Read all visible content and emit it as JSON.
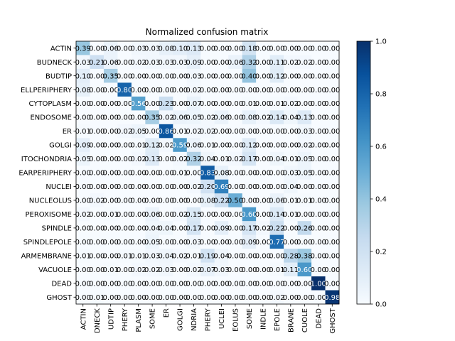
{
  "chart_data": {
    "type": "heatmap",
    "title": "Normalized confusion matrix",
    "labels": [
      "ACTIN",
      "BUDNECK",
      "BUDTIP",
      "CELLPERIPHERY",
      "CYTOPLASM",
      "ENDOSOME",
      "ER",
      "GOLGI",
      "MITOCHONDRIA",
      "NUCLEARPERIPHERY",
      "NUCLEI",
      "NUCLEOLUS",
      "PEROXISOME",
      "SPINDLE",
      "SPINDLEPOLE",
      "VACUOLARMEMBRANE",
      "VACUOLE",
      "DEAD",
      "GHOST"
    ],
    "xticklabels_visible": [
      "ACTIN",
      "DNECK",
      "UDTIP",
      "PHERY",
      "PLASM",
      "SOME",
      "ER",
      "GOLGI",
      "NDRIA",
      "PHERY",
      "UCLEI",
      "EOLUS",
      "SOME",
      "INDLE",
      "EPOLE",
      "BRANE",
      "CUOLE",
      "DEAD",
      "GHOST"
    ],
    "yticklabels_visible": [
      "ACTIN",
      "BUDNECK",
      "BUDTIP",
      "ELLPERIPHERY",
      "CYTOPLASM",
      "ENDOSOME",
      "ER",
      "GOLGI",
      "ITOCHONDRIA",
      "EARPERIPHERY",
      "NUCLEI",
      "NUCLEOLUS",
      "PEROXISOME",
      "SPINDLE",
      "SPINDLEPOLE",
      "ARMEMBRANE",
      "VACUOLE",
      "DEAD",
      "GHOST"
    ],
    "matrix": [
      [
        0.39,
        0.0,
        0.06,
        0.0,
        0.03,
        0.03,
        0.08,
        0.1,
        0.13,
        0.0,
        0.0,
        0.0,
        0.18,
        0.0,
        0.0,
        0.0,
        0.0,
        0.0,
        0.0
      ],
      [
        0.03,
        0.21,
        0.06,
        0.0,
        0.02,
        0.03,
        0.03,
        0.03,
        0.09,
        0.0,
        0.0,
        0.06,
        0.32,
        0.0,
        0.11,
        0.02,
        0.02,
        0.0,
        0.0
      ],
      [
        0.1,
        0.0,
        0.35,
        0.0,
        0.0,
        0.0,
        0.0,
        0.0,
        0.03,
        0.0,
        0.0,
        0.0,
        0.4,
        0.0,
        0.12,
        0.0,
        0.0,
        0.0,
        0.0
      ],
      [
        0.08,
        0.0,
        0.0,
        0.8,
        0.0,
        0.0,
        0.0,
        0.0,
        0.02,
        0.0,
        0.0,
        0.0,
        0.0,
        0.0,
        0.0,
        0.0,
        0.0,
        0.0,
        0.0
      ],
      [
        0.0,
        0.0,
        0.0,
        0.0,
        0.56,
        0.0,
        0.23,
        0.0,
        0.07,
        0.0,
        0.0,
        0.0,
        0.01,
        0.0,
        0.01,
        0.02,
        0.0,
        0.0,
        0.0
      ],
      [
        0.0,
        0.0,
        0.0,
        0.0,
        0.0,
        0.35,
        0.02,
        0.06,
        0.05,
        0.02,
        0.06,
        0.0,
        0.08,
        0.02,
        0.14,
        0.04,
        0.13,
        0.0,
        0.0
      ],
      [
        0.01,
        0.0,
        0.0,
        0.02,
        0.05,
        0.0,
        0.86,
        0.01,
        0.02,
        0.02,
        0.0,
        0.0,
        0.0,
        0.0,
        0.0,
        0.0,
        0.03,
        0.0,
        0.0
      ],
      [
        0.09,
        0.0,
        0.0,
        0.0,
        0.01,
        0.12,
        0.02,
        0.59,
        0.06,
        0.01,
        0.0,
        0.0,
        0.12,
        0.0,
        0.0,
        0.0,
        0.02,
        0.0,
        0.0
      ],
      [
        0.05,
        0.0,
        0.0,
        0.0,
        0.02,
        0.13,
        0.0,
        0.02,
        0.32,
        0.04,
        0.01,
        0.02,
        0.17,
        0.0,
        0.04,
        0.01,
        0.05,
        0.0,
        0.0
      ],
      [
        0.0,
        0.0,
        0.0,
        0.0,
        0.0,
        0.0,
        0.0,
        0.01,
        0.0,
        0.83,
        0.08,
        0.0,
        0.0,
        0.0,
        0.0,
        0.03,
        0.05,
        0.0,
        0.0
      ],
      [
        0.0,
        0.0,
        0.0,
        0.0,
        0.0,
        0.0,
        0.0,
        0.0,
        0.02,
        0.2,
        0.69,
        0.0,
        0.0,
        0.0,
        0.0,
        0.04,
        0.0,
        0.0,
        0.0
      ],
      [
        0.0,
        0.02,
        0.0,
        0.0,
        0.0,
        0.0,
        0.0,
        0.0,
        0.0,
        0.08,
        0.22,
        0.5,
        0.0,
        0.0,
        0.06,
        0.01,
        0.01,
        0.0,
        0.0
      ],
      [
        0.02,
        0.0,
        0.01,
        0.0,
        0.0,
        0.06,
        0.0,
        0.02,
        0.15,
        0.0,
        0.0,
        0.0,
        0.6,
        0.0,
        0.14,
        0.01,
        0.0,
        0.0,
        0.0
      ],
      [
        0.0,
        0.0,
        0.0,
        0.0,
        0.0,
        0.04,
        0.04,
        0.0,
        0.17,
        0.0,
        0.09,
        0.0,
        0.17,
        0.02,
        0.22,
        0.0,
        0.26,
        0.0,
        0.0
      ],
      [
        0.0,
        0.0,
        0.0,
        0.0,
        0.0,
        0.05,
        0.0,
        0.0,
        0.03,
        0.0,
        0.0,
        0.0,
        0.09,
        0.0,
        0.77,
        0.0,
        0.0,
        0.0,
        0.0
      ],
      [
        0.01,
        0.0,
        0.0,
        0.01,
        0.01,
        0.03,
        0.04,
        0.02,
        0.01,
        0.19,
        0.04,
        0.0,
        0.0,
        0.0,
        0.0,
        0.28,
        0.38,
        0.0,
        0.0
      ],
      [
        0.0,
        0.0,
        0.01,
        0.0,
        0.02,
        0.02,
        0.03,
        0.0,
        0.02,
        0.07,
        0.03,
        0.0,
        0.0,
        0.0,
        0.01,
        0.11,
        0.6,
        0.0,
        0.0
      ],
      [
        0.0,
        0.0,
        0.0,
        0.0,
        0.0,
        0.0,
        0.0,
        0.0,
        0.0,
        0.0,
        0.0,
        0.0,
        0.0,
        0.0,
        0.0,
        0.0,
        0.0,
        1.0,
        0.0
      ],
      [
        0.0,
        0.01,
        0.0,
        0.0,
        0.0,
        0.0,
        0.0,
        0.0,
        0.0,
        0.0,
        0.0,
        0.0,
        0.0,
        0.0,
        0.02,
        0.0,
        0.0,
        0.0,
        0.98
      ]
    ],
    "colormap": "Blues",
    "vmin": 0.0,
    "vmax": 1.0,
    "colorbar_ticks": [
      "0.0",
      "0.2",
      "0.4",
      "0.6",
      "0.8",
      "1.0"
    ],
    "colorbar_values": [
      0.0,
      0.2,
      0.4,
      0.6,
      0.8,
      1.0
    ],
    "grid": false
  }
}
